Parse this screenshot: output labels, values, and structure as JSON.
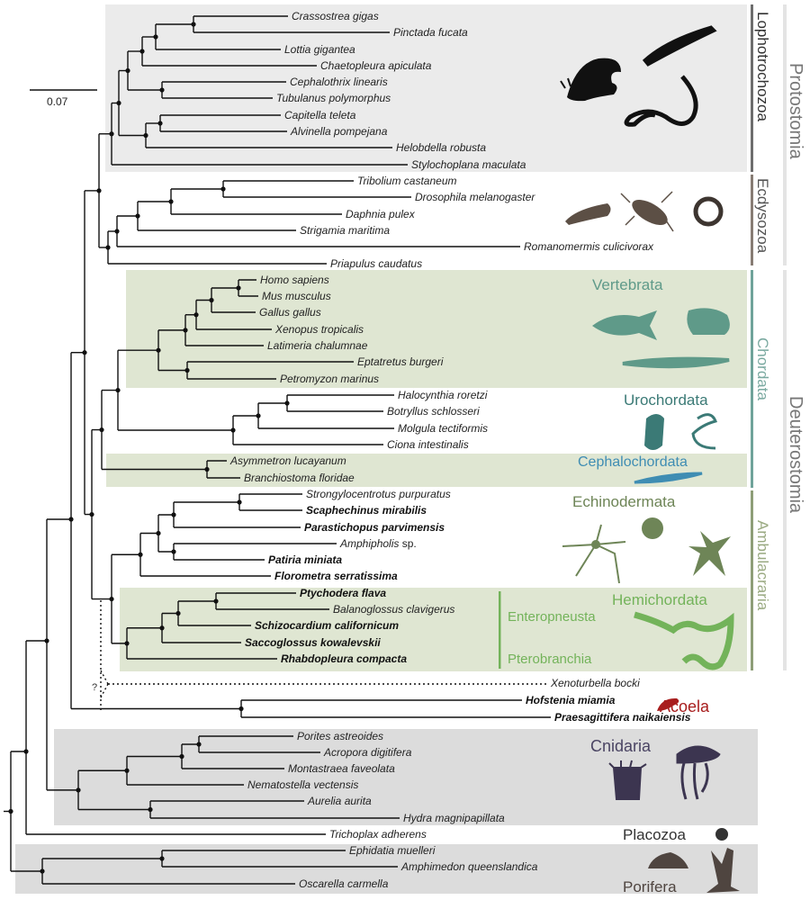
{
  "scale_bar": {
    "label": "0.07"
  },
  "uncertain_mark": "?",
  "taxa": [
    {
      "name": "Crassostrea gigas"
    },
    {
      "name": "Pinctada fucata"
    },
    {
      "name": "Lottia gigantea"
    },
    {
      "name": "Chaetopleura apiculata"
    },
    {
      "name": "Cephalothrix linearis"
    },
    {
      "name": "Tubulanus polymorphus"
    },
    {
      "name": "Capitella teleta"
    },
    {
      "name": "Alvinella pompejana"
    },
    {
      "name": "Helobdella robusta"
    },
    {
      "name": "Stylochoplana maculata"
    },
    {
      "name": "Tribolium castaneum"
    },
    {
      "name": "Drosophila melanogaster"
    },
    {
      "name": "Daphnia pulex"
    },
    {
      "name": "Strigamia maritima"
    },
    {
      "name": "Romanomermis culicivorax"
    },
    {
      "name": "Priapulus caudatus"
    },
    {
      "name": "Homo sapiens"
    },
    {
      "name": "Mus musculus"
    },
    {
      "name": "Gallus gallus"
    },
    {
      "name": "Xenopus tropicalis"
    },
    {
      "name": "Latimeria chalumnae"
    },
    {
      "name": "Eptatretus burgeri"
    },
    {
      "name": "Petromyzon marinus"
    },
    {
      "name": "Halocynthia roretzi"
    },
    {
      "name": "Botryllus schlosseri"
    },
    {
      "name": "Molgula tectiformis"
    },
    {
      "name": "Ciona intestinalis"
    },
    {
      "name": "Asymmetron lucayanum"
    },
    {
      "name": "Branchiostoma floridae"
    },
    {
      "name": "Strongylocentrotus purpuratus"
    },
    {
      "name": "Scaphechinus mirabilis",
      "bold": true
    },
    {
      "name": "Parastichopus parvimensis",
      "bold": true
    },
    {
      "name": "Amphipholis",
      "suffix": "sp."
    },
    {
      "name": "Patiria miniata",
      "bold": true
    },
    {
      "name": "Florometra serratissima",
      "bold": true
    },
    {
      "name": "Ptychodera flava",
      "bold": true
    },
    {
      "name": "Balanoglossus clavigerus"
    },
    {
      "name": "Schizocardium californicum",
      "bold": true
    },
    {
      "name": "Saccoglossus kowalevskii",
      "bold": true
    },
    {
      "name": "Rhabdopleura compacta",
      "bold": true
    },
    {
      "name": "Xenoturbella bocki",
      "dotted": true
    },
    {
      "name": "Hofstenia miamia",
      "bold": true
    },
    {
      "name": "Praesagittifera naikaiensis",
      "bold": true
    },
    {
      "name": "Porites astreoides"
    },
    {
      "name": "Acropora digitifera"
    },
    {
      "name": "Montastraea faveolata"
    },
    {
      "name": "Nematostella vectensis"
    },
    {
      "name": "Aurelia aurita"
    },
    {
      "name": "Hydra magnipapillata"
    },
    {
      "name": "Trichoplax adherens"
    },
    {
      "name": "Ephidatia muelleri"
    },
    {
      "name": "Amphimedon queenslandica"
    },
    {
      "name": "Oscarella carmella"
    }
  ],
  "clades": {
    "lophotrochozoa": "Lophotrochozoa",
    "ecdysozoa": "Ecdysozoa",
    "protostomia": "Protostomia",
    "vertebrata": "Vertebrata",
    "urochordata": "Urochordata",
    "cephalochordata": "Cephalochordata",
    "chordata": "Chordata",
    "echinodermata": "Echinodermata",
    "hemichordata": "Hemichordata",
    "enteropneusta": "Enteropneusta",
    "pterobranchia": "Pterobranchia",
    "ambulacraria": "Ambulacraria",
    "deuterostomia": "Deuterostomia",
    "acoela": "Acoela",
    "cnidaria": "Cnidaria",
    "placozoa": "Placozoa",
    "porifera": "Porifera"
  },
  "colors": {
    "lophotrochozoa_shade": "#ebebeb",
    "chordate_shade": "#dfe6d2",
    "cnidaria_shade": "#dcdcdc",
    "lophotrochozoa": "#333333",
    "ecdysozoa": "#6b6058",
    "vertebrata": "#5f9a89",
    "urochordata": "#3b7a76",
    "cephalochordata": "#3f8db3",
    "echinodermata": "#6e8557",
    "hemichordata": "#73b35a",
    "acoela": "#a81e1e",
    "cnidaria": "#4a4463",
    "placozoa": "#333333",
    "porifera": "#4f4540"
  }
}
